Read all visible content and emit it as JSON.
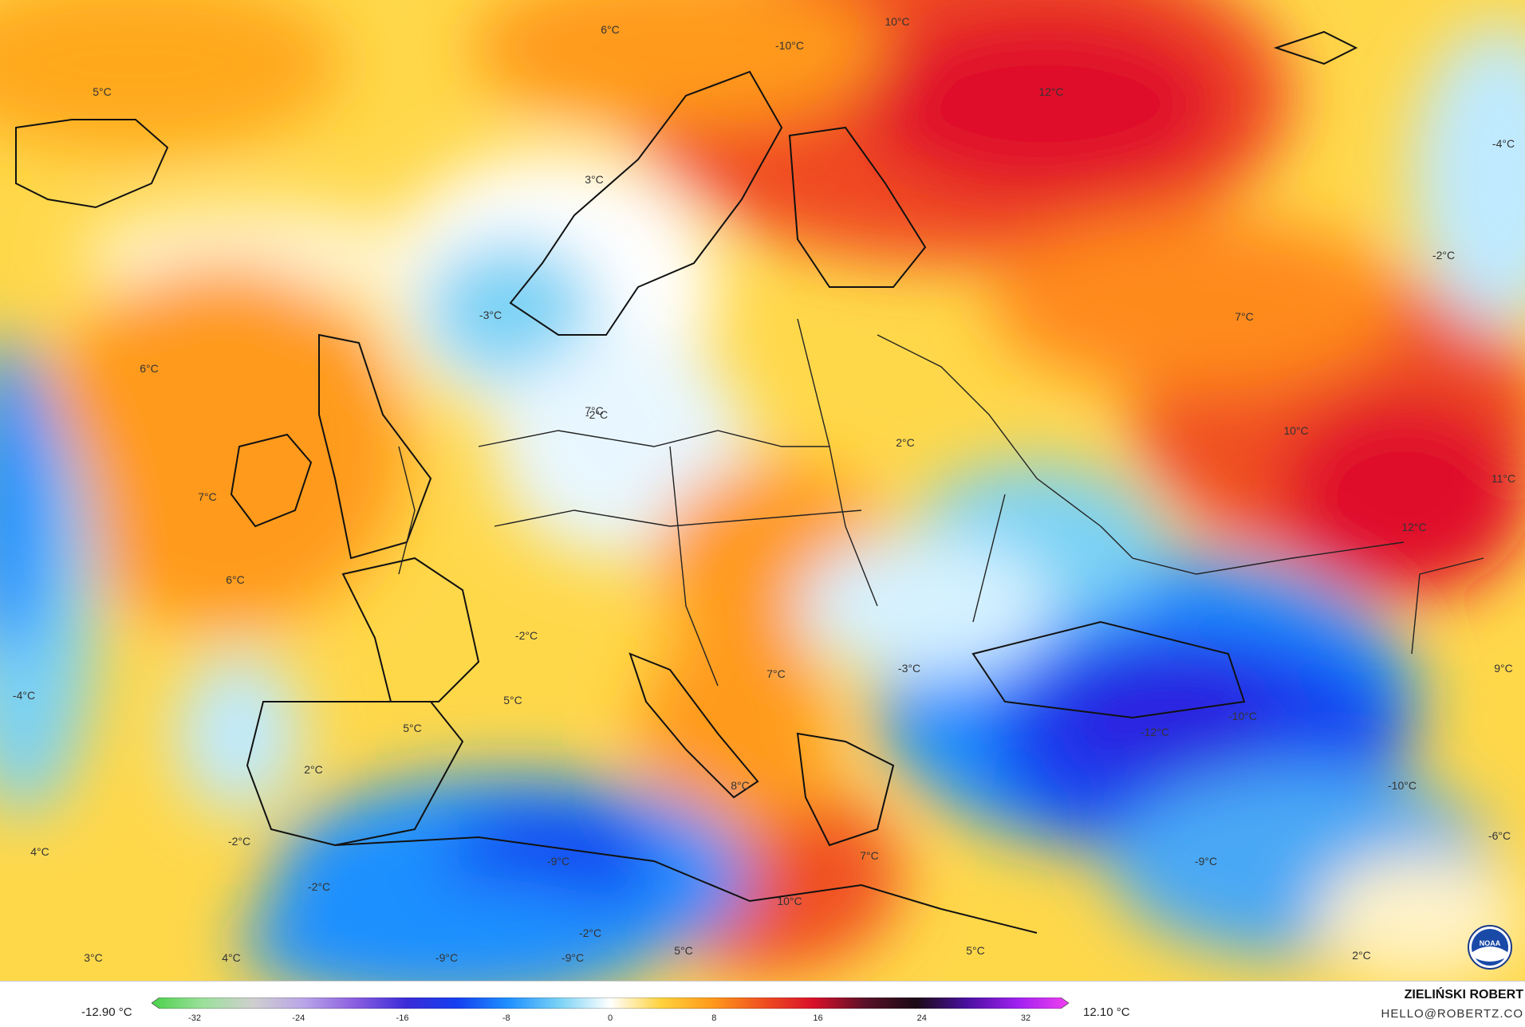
{
  "map": {
    "labels": [
      {
        "text": "6°C"
      },
      {
        "text": "5°C"
      },
      {
        "text": "10°C"
      },
      {
        "text": "-10°C"
      },
      {
        "text": "12°C"
      },
      {
        "text": "-4°C"
      },
      {
        "text": "3°C"
      },
      {
        "text": "-2°C"
      },
      {
        "text": "-3°C"
      },
      {
        "text": "7°C"
      },
      {
        "text": "6°C"
      },
      {
        "text": "7°C"
      },
      {
        "text": "-2°C"
      },
      {
        "text": "2°C"
      },
      {
        "text": "10°C"
      },
      {
        "text": "11°C"
      },
      {
        "text": "6°C"
      },
      {
        "text": "7°C"
      },
      {
        "text": "12°C"
      },
      {
        "text": "-2°C"
      },
      {
        "text": "-3°C"
      },
      {
        "text": "-4°C"
      },
      {
        "text": "5°C"
      },
      {
        "text": "7°C"
      },
      {
        "text": "9°C"
      },
      {
        "text": "5°C"
      },
      {
        "text": "-12°C"
      },
      {
        "text": "-10°C"
      },
      {
        "text": "2°C"
      },
      {
        "text": "8°C"
      },
      {
        "text": "-10°C"
      },
      {
        "text": "-2°C"
      },
      {
        "text": "4°C"
      },
      {
        "text": "-9°C"
      },
      {
        "text": "7°C"
      },
      {
        "text": "-6°C"
      },
      {
        "text": "-9°C"
      },
      {
        "text": "-2°C"
      },
      {
        "text": "10°C"
      },
      {
        "text": "3°C"
      },
      {
        "text": "4°C"
      },
      {
        "text": "-9°C"
      },
      {
        "text": "-9°C"
      },
      {
        "text": "5°C"
      },
      {
        "text": "5°C"
      },
      {
        "text": "2°C"
      },
      {
        "text": "-2°C"
      }
    ]
  },
  "legend": {
    "min_label": "-12.90 °C",
    "max_label": "12.10 °C",
    "ticks": [
      "-32",
      "-24",
      "-16",
      "-8",
      "0",
      "8",
      "16",
      "24",
      "32"
    ],
    "colors": [
      "#4bd14b",
      "#9be09b",
      "#cfcfcf",
      "#b9a4e8",
      "#8a5ee0",
      "#3b2bd8",
      "#1440f0",
      "#1e90ff",
      "#7ad2f5",
      "#ffffff",
      "#ffd23c",
      "#ff9a1a",
      "#f05020",
      "#d8102a",
      "#5a1028",
      "#1a0a14",
      "#4a10a0",
      "#a020f0",
      "#f040f0"
    ]
  },
  "credits": {
    "author": "ZIELIŃSKI ROBERT",
    "email": "HELLO@ROBERTZ.CO",
    "logo_text": "NOAA"
  }
}
